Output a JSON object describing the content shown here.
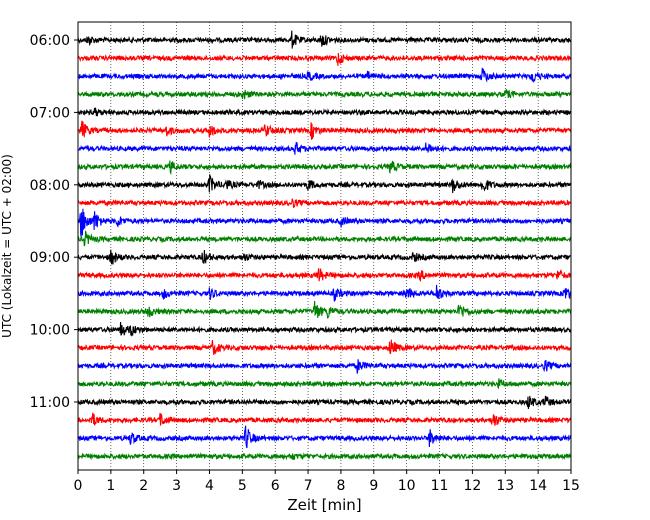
{
  "chart_data": {
    "type": "line",
    "xlabel": "Zeit  [min]",
    "ylabel": "UTC (Lokalzeit = UTC + 02:00)",
    "xlim": [
      0,
      15
    ],
    "x_ticks": [
      0,
      1,
      2,
      3,
      4,
      5,
      6,
      7,
      8,
      9,
      10,
      11,
      12,
      13,
      14,
      15
    ],
    "y_tick_labels": [
      "06:00",
      "07:00",
      "08:00",
      "09:00",
      "10:00",
      "11:00"
    ],
    "grid": "vertical-dotted",
    "trace_colors": [
      "#000000",
      "#ff0000",
      "#0000ff",
      "#008000"
    ],
    "traces": [
      {
        "start": "06:00",
        "events": [
          [
            0.3,
            0.5
          ],
          [
            6.5,
            0.9
          ],
          [
            7.4,
            0.8
          ]
        ]
      },
      {
        "start": "06:15",
        "events": [
          [
            7.9,
            0.8
          ]
        ]
      },
      {
        "start": "06:30",
        "events": [
          [
            7.0,
            0.5
          ],
          [
            8.8,
            0.4
          ],
          [
            12.3,
            0.9
          ],
          [
            13.8,
            0.8
          ]
        ]
      },
      {
        "start": "06:45",
        "events": [
          [
            5.0,
            0.6
          ],
          [
            13.0,
            0.5
          ]
        ]
      },
      {
        "start": "07:00",
        "events": [
          [
            0.5,
            0.4
          ]
        ]
      },
      {
        "start": "07:15",
        "events": [
          [
            0.1,
            1.2
          ],
          [
            2.7,
            0.5
          ],
          [
            4.0,
            0.8
          ],
          [
            5.7,
            0.7
          ],
          [
            7.1,
            0.9
          ]
        ]
      },
      {
        "start": "07:30",
        "events": [
          [
            6.6,
            0.7
          ],
          [
            10.6,
            0.7
          ]
        ]
      },
      {
        "start": "07:45",
        "events": [
          [
            2.8,
            0.6
          ],
          [
            9.5,
            0.7
          ]
        ]
      },
      {
        "start": "08:00",
        "events": [
          [
            4.0,
            1.0
          ],
          [
            4.5,
            0.5
          ],
          [
            5.5,
            0.4
          ],
          [
            7.0,
            0.6
          ],
          [
            11.4,
            0.8
          ],
          [
            12.3,
            1.0
          ]
        ]
      },
      {
        "start": "08:15",
        "events": [
          [
            6.5,
            0.5
          ]
        ]
      },
      {
        "start": "08:30",
        "events": [
          [
            0.1,
            2.0
          ],
          [
            0.5,
            1.0
          ],
          [
            1.2,
            0.6
          ],
          [
            8.0,
            0.5
          ]
        ]
      },
      {
        "start": "08:45",
        "events": [
          [
            0.2,
            0.8
          ]
        ]
      },
      {
        "start": "09:00",
        "events": [
          [
            1.0,
            0.9
          ],
          [
            3.8,
            0.8
          ],
          [
            5.0,
            0.5
          ],
          [
            10.2,
            0.5
          ]
        ]
      },
      {
        "start": "09:15",
        "events": [
          [
            7.3,
            0.9
          ],
          [
            10.4,
            0.5
          ],
          [
            14.6,
            0.6
          ]
        ]
      },
      {
        "start": "09:30",
        "events": [
          [
            2.6,
            0.5
          ],
          [
            4.0,
            0.6
          ],
          [
            7.8,
            0.7
          ],
          [
            10.0,
            0.6
          ],
          [
            10.9,
            1.0
          ],
          [
            14.8,
            0.9
          ]
        ]
      },
      {
        "start": "09:45",
        "events": [
          [
            2.1,
            0.8
          ],
          [
            7.2,
            1.2
          ],
          [
            7.6,
            0.6
          ],
          [
            11.6,
            1.0
          ]
        ]
      },
      {
        "start": "10:00",
        "events": [
          [
            1.3,
            0.8
          ],
          [
            1.6,
            0.6
          ]
        ]
      },
      {
        "start": "10:15",
        "events": [
          [
            4.1,
            0.8
          ],
          [
            9.5,
            1.0
          ]
        ]
      },
      {
        "start": "10:30",
        "events": [
          [
            8.5,
            0.7
          ],
          [
            14.2,
            0.6
          ]
        ]
      },
      {
        "start": "10:45",
        "events": [
          [
            12.8,
            0.4
          ]
        ]
      },
      {
        "start": "11:00",
        "events": [
          [
            13.7,
            0.7
          ],
          [
            14.2,
            0.6
          ]
        ]
      },
      {
        "start": "11:15",
        "events": [
          [
            0.4,
            0.9
          ],
          [
            2.5,
            0.7
          ],
          [
            12.6,
            1.0
          ]
        ]
      },
      {
        "start": "11:30",
        "events": [
          [
            1.6,
            0.7
          ],
          [
            5.1,
            1.4
          ],
          [
            10.7,
            1.0
          ]
        ]
      },
      {
        "start": "11:45",
        "events": [
          [
            6.5,
            0.3
          ]
        ]
      }
    ]
  }
}
